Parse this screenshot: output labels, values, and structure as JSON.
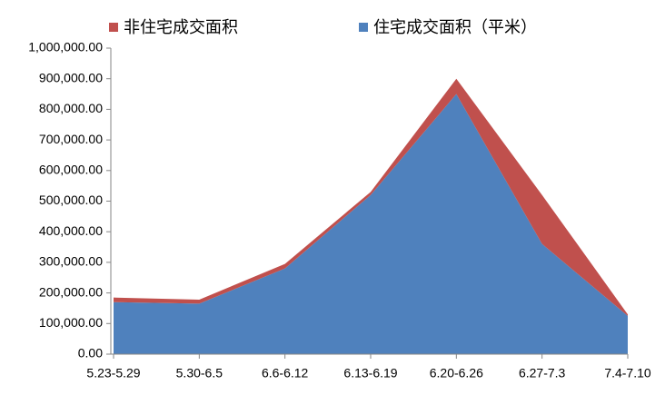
{
  "chart_data": {
    "type": "stacked_area",
    "categories": [
      "5.23-5.29",
      "5.30-6.5",
      "6.6-6.12",
      "6.13-6.19",
      "6.20-6.26",
      "6.27-7.3",
      "7.4-7.10"
    ],
    "series": [
      {
        "name": "住宅成交面积（平米）",
        "color": "#4f81bd",
        "values": [
          170000,
          165000,
          280000,
          520000,
          850000,
          360000,
          125000
        ]
      },
      {
        "name": "非住宅成交面积",
        "color": "#c0504d",
        "values": [
          15000,
          13000,
          15000,
          10000,
          50000,
          160000,
          5000
        ]
      }
    ],
    "ylim": [
      0,
      1000000
    ],
    "yticks": [
      {
        "value": 0,
        "label": "0.00"
      },
      {
        "value": 100000,
        "label": "100,000.00"
      },
      {
        "value": 200000,
        "label": "200,000.00"
      },
      {
        "value": 300000,
        "label": "300,000.00"
      },
      {
        "value": 400000,
        "label": "400,000.00"
      },
      {
        "value": 500000,
        "label": "500,000.00"
      },
      {
        "value": 600000,
        "label": "600,000.00"
      },
      {
        "value": 700000,
        "label": "700,000.00"
      },
      {
        "value": 800000,
        "label": "800,000.00"
      },
      {
        "value": 900000,
        "label": "900,000.00"
      },
      {
        "value": 1000000,
        "label": "1,000,000.00"
      }
    ],
    "legend": "top"
  }
}
